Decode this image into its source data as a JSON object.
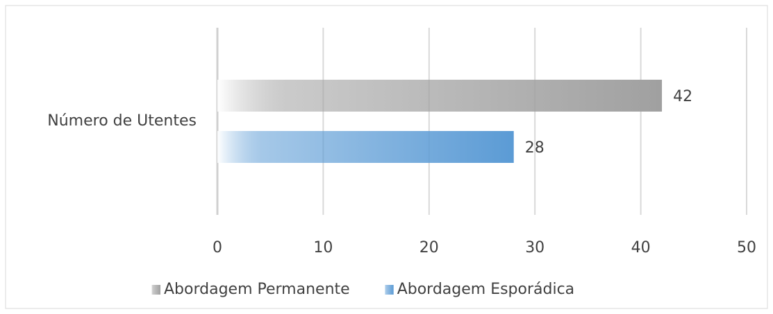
{
  "chart_data": {
    "type": "bar",
    "orientation": "horizontal",
    "categories": [
      "Número de Utentes"
    ],
    "series": [
      {
        "name": "Abordagem Permanente",
        "color": "#a0a0a0",
        "values": [
          42
        ]
      },
      {
        "name": "Abordagem Esporádica",
        "color": "#5b9bd5",
        "values": [
          28
        ]
      }
    ],
    "xlim": [
      0,
      50
    ],
    "xticks": [
      0,
      10,
      20,
      30,
      40,
      50
    ],
    "grid": true,
    "legend": "bottom"
  }
}
